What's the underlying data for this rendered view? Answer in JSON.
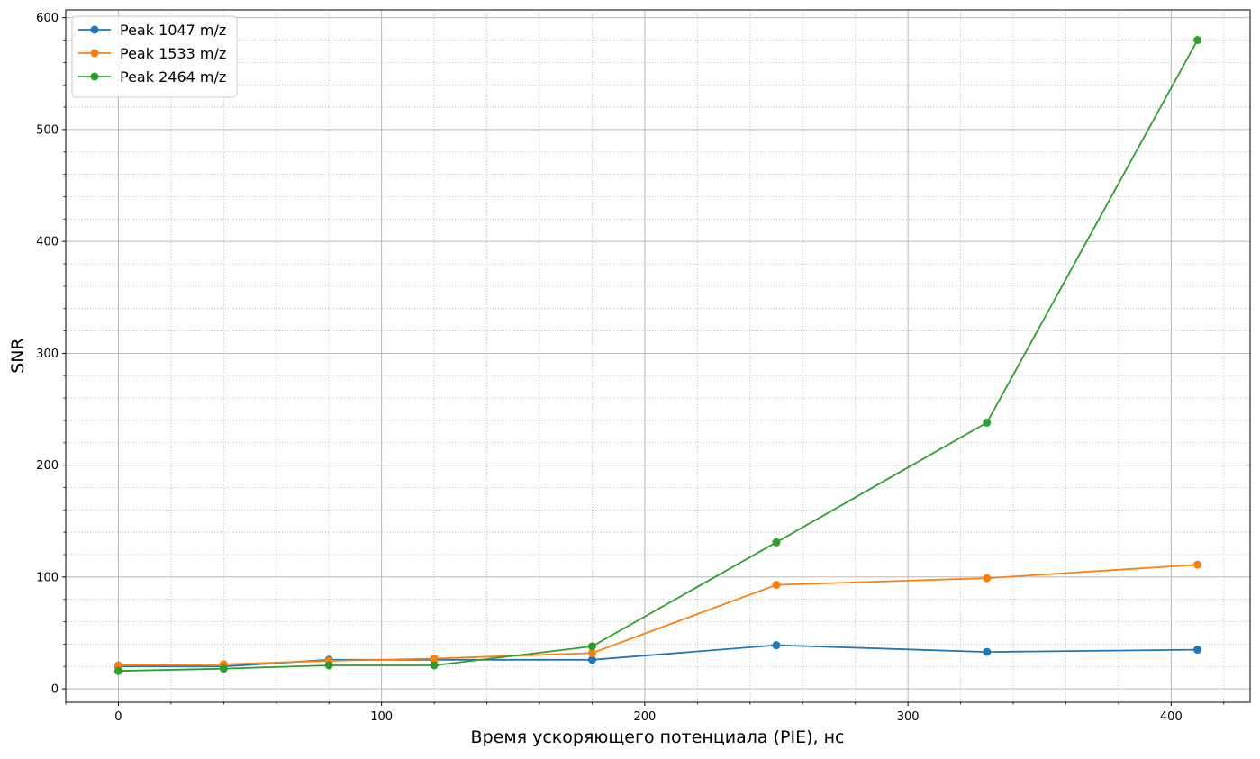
{
  "chart_data": {
    "type": "line",
    "title": "",
    "xlabel": "Время ускоряющего потенциала (PIE), нс",
    "ylabel": "SNR",
    "xlim": [
      -20,
      430
    ],
    "ylim": [
      -12,
      607
    ],
    "xticks": [
      0,
      100,
      200,
      300,
      400
    ],
    "yticks": [
      0,
      100,
      200,
      300,
      400,
      500,
      600
    ],
    "x_minor_step": 20,
    "y_minor_step": 20,
    "grid": {
      "major": true,
      "minor": true
    },
    "legend_position": "top-left",
    "x": [
      0,
      40,
      80,
      120,
      180,
      250,
      330,
      410
    ],
    "series": [
      {
        "name": "Peak 1047 m/z",
        "color": "#1f77b4",
        "values": [
          20,
          20,
          26,
          26,
          26,
          39,
          33,
          35
        ]
      },
      {
        "name": "Peak 1533 m/z",
        "color": "#ff7f0e",
        "values": [
          21,
          22,
          25,
          27,
          32,
          93,
          99,
          111
        ]
      },
      {
        "name": "Peak 2464 m/z",
        "color": "#2ca02c",
        "values": [
          16,
          18,
          21,
          21,
          38,
          131,
          238,
          580
        ]
      }
    ]
  }
}
